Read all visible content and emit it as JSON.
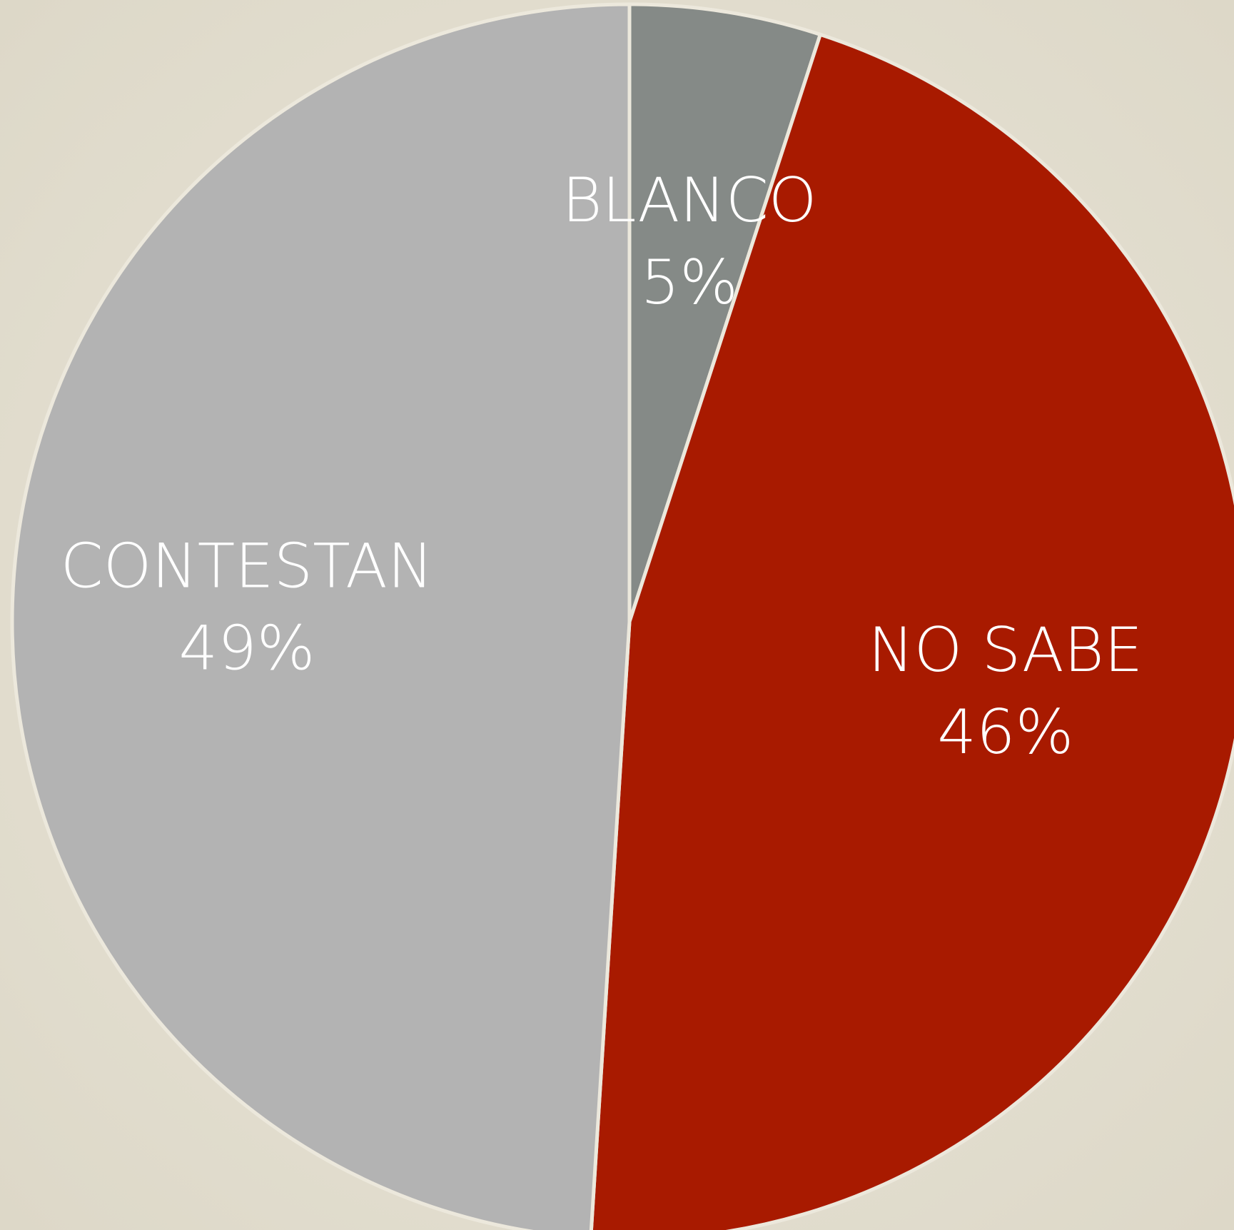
{
  "chart_data": {
    "type": "pie",
    "categories": [
      "BLANCO",
      "NO SABE",
      "CONTESTAN"
    ],
    "values": [
      5,
      46,
      49
    ],
    "value_labels": [
      "5%",
      "46%",
      "49%"
    ],
    "colors": [
      "#858a87",
      "#a81a00",
      "#b3b3b3"
    ]
  }
}
